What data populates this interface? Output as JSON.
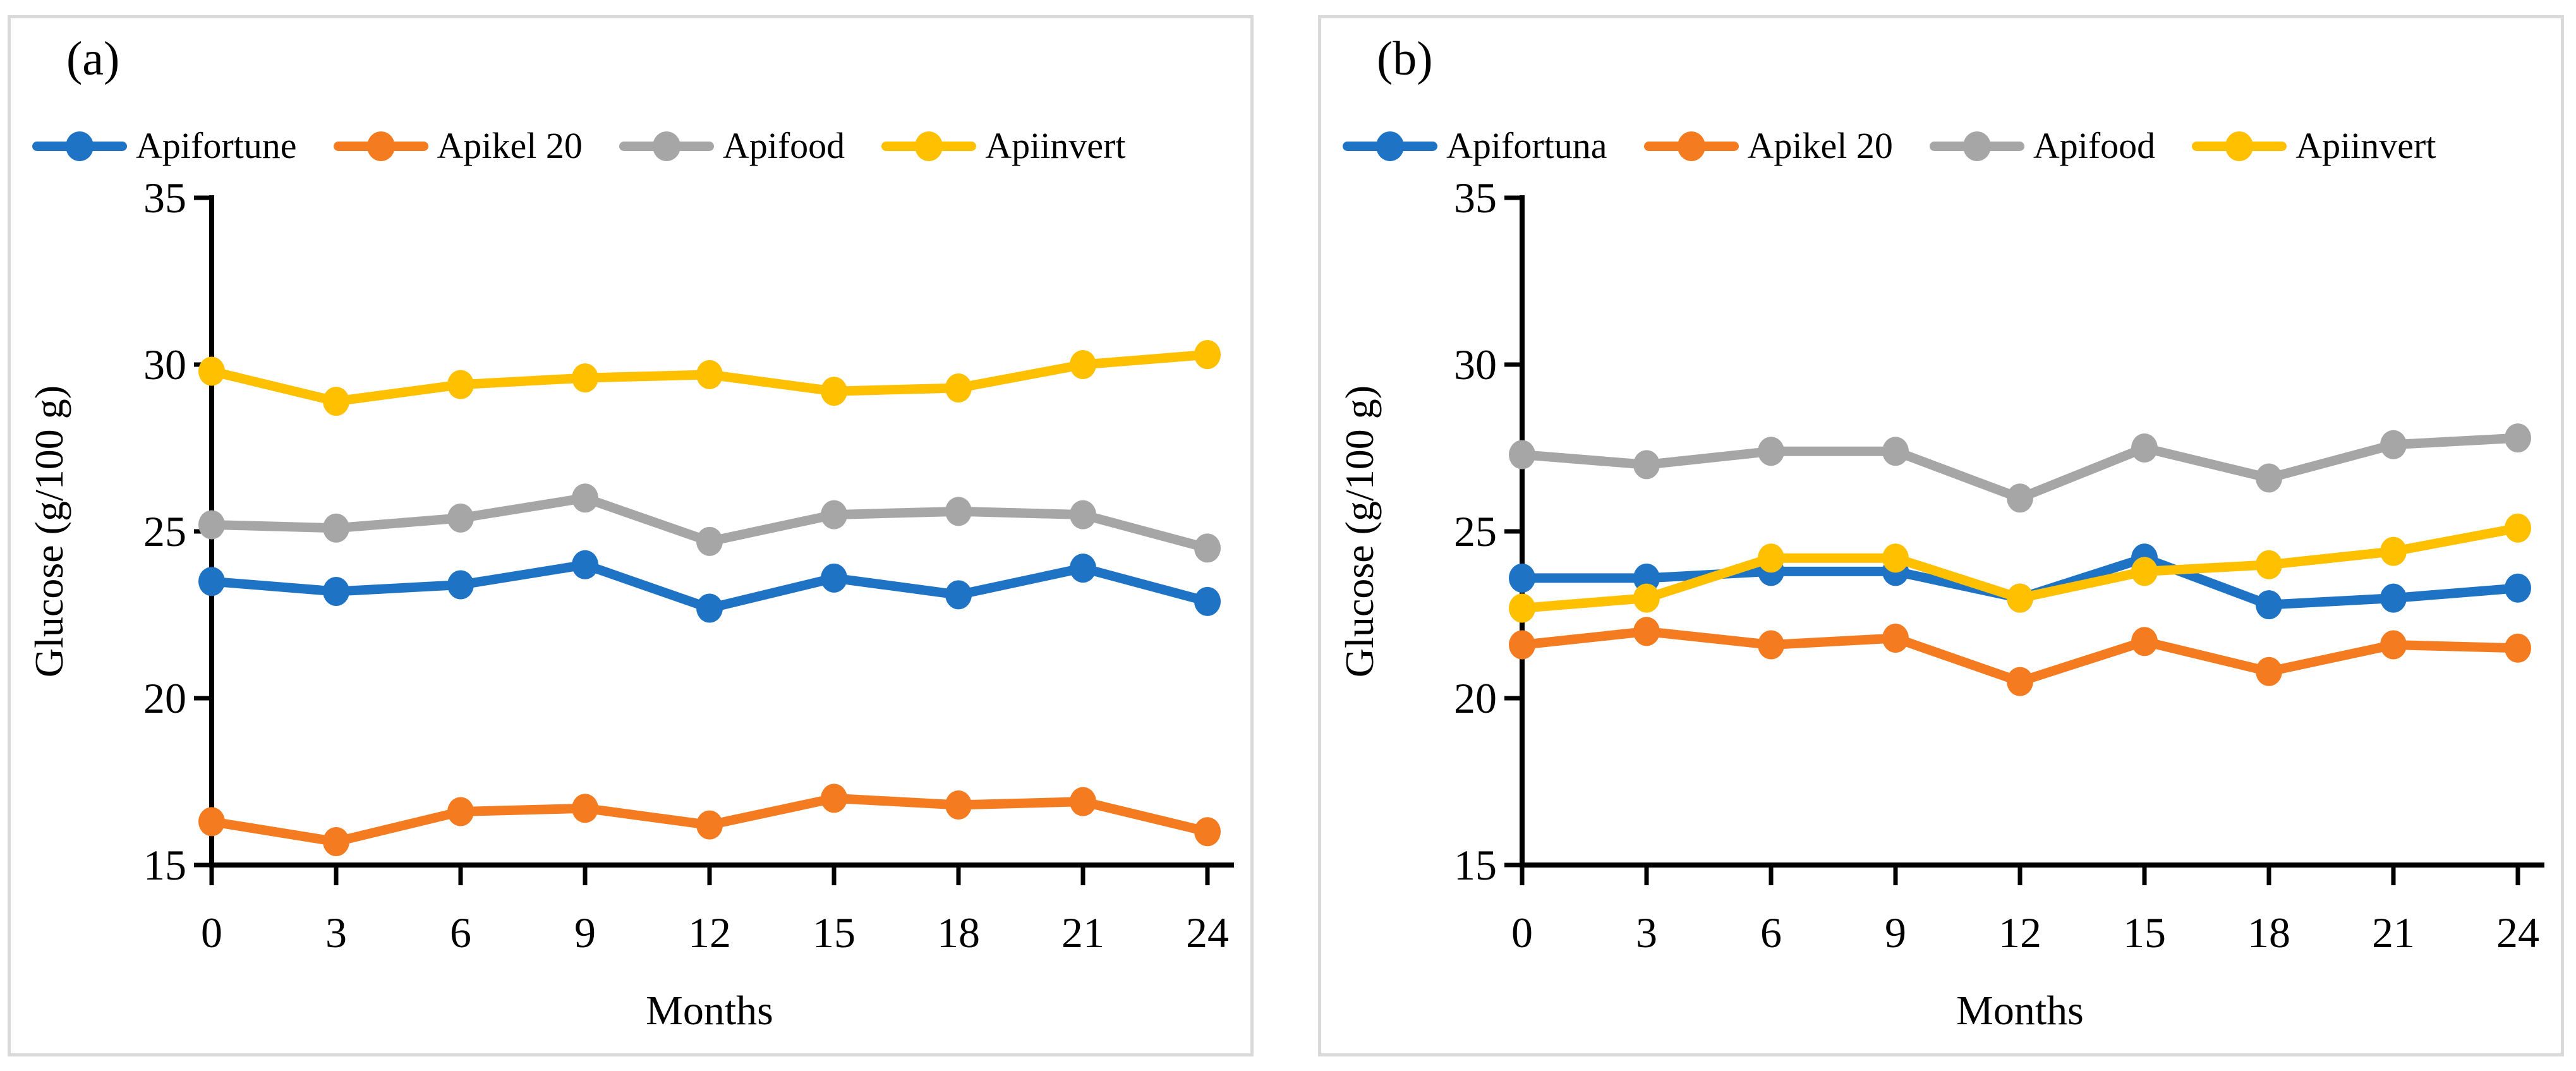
{
  "figure": {
    "background": "#ffffff",
    "panel_border_color": "#d9d9d9",
    "panels": [
      {
        "label": "(a)"
      },
      {
        "label": "(b)"
      }
    ]
  },
  "chart_data": [
    {
      "type": "line",
      "title": "(a)",
      "xlabel": "Months",
      "ylabel": "Glucose (g/100 g)",
      "x": [
        0,
        3,
        6,
        9,
        12,
        15,
        18,
        21,
        24
      ],
      "ylim": [
        15,
        35
      ],
      "ytick_step": 5,
      "grid": false,
      "legend_position": "top",
      "series": [
        {
          "name": "Apifortune",
          "color": "#1e73c5",
          "values": [
            23.5,
            23.2,
            23.4,
            24.0,
            22.7,
            23.6,
            23.1,
            23.9,
            22.9
          ]
        },
        {
          "name": "Apikel 20",
          "color": "#f47b20",
          "values": [
            16.3,
            15.7,
            16.6,
            16.7,
            16.2,
            17.0,
            16.8,
            16.9,
            16.0
          ]
        },
        {
          "name": "Apifood",
          "color": "#a6a6a6",
          "values": [
            25.2,
            25.1,
            25.4,
            26.0,
            24.7,
            25.5,
            25.6,
            25.5,
            24.5
          ]
        },
        {
          "name": "Apiinvert",
          "color": "#ffc000",
          "values": [
            29.8,
            28.9,
            29.4,
            29.6,
            29.7,
            29.2,
            29.3,
            30.0,
            30.3
          ]
        }
      ]
    },
    {
      "type": "line",
      "title": "(b)",
      "xlabel": "Months",
      "ylabel": "Glucose (g/100 g)",
      "x": [
        0,
        3,
        6,
        9,
        12,
        15,
        18,
        21,
        24
      ],
      "ylim": [
        15,
        35
      ],
      "ytick_step": 5,
      "grid": false,
      "legend_position": "top",
      "series": [
        {
          "name": "Apifortuna",
          "color": "#1e73c5",
          "values": [
            23.6,
            23.6,
            23.8,
            23.8,
            23.0,
            24.2,
            22.8,
            23.0,
            23.3
          ]
        },
        {
          "name": "Apikel 20",
          "color": "#f47b20",
          "values": [
            21.6,
            22.0,
            21.6,
            21.8,
            20.5,
            21.7,
            20.8,
            21.6,
            21.5
          ]
        },
        {
          "name": "Apifood",
          "color": "#a6a6a6",
          "values": [
            27.3,
            27.0,
            27.4,
            27.4,
            26.0,
            27.5,
            26.6,
            27.6,
            27.8
          ]
        },
        {
          "name": "Apiinvert",
          "color": "#ffc000",
          "values": [
            22.7,
            23.0,
            24.2,
            24.2,
            23.0,
            23.8,
            24.0,
            24.4,
            25.1
          ]
        }
      ]
    }
  ]
}
